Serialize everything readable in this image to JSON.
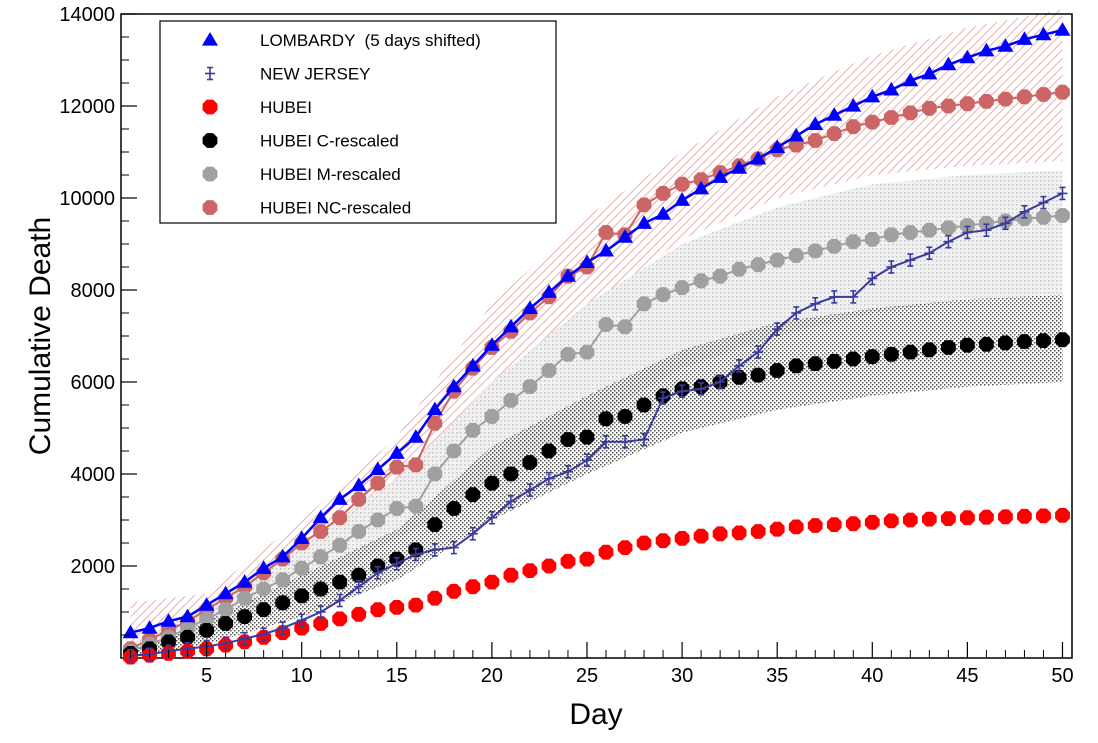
{
  "chart_data": {
    "type": "line",
    "title": "",
    "xlabel": "Day",
    "ylabel": "Cumulative Death",
    "xlim": [
      0.5,
      50.5
    ],
    "ylim": [
      0,
      14000
    ],
    "x_ticks": [
      5,
      10,
      15,
      20,
      25,
      30,
      35,
      40,
      45,
      50
    ],
    "y_ticks": [
      2000,
      4000,
      6000,
      8000,
      10000,
      12000,
      14000
    ],
    "legend": "top-left",
    "series": [
      {
        "name": "LOMBARDY  (5 days shifted)",
        "marker": "triangle",
        "color": "#0000ff",
        "line": true,
        "x": [
          1,
          2,
          3,
          4,
          5,
          6,
          7,
          8,
          9,
          10,
          11,
          12,
          13,
          14,
          15,
          16,
          17,
          18,
          19,
          20,
          21,
          22,
          23,
          24,
          25,
          26,
          27,
          28,
          29,
          30,
          31,
          32,
          33,
          34,
          35,
          36,
          37,
          38,
          39,
          40,
          41,
          42,
          43,
          44,
          45,
          46,
          47,
          48,
          49,
          50
        ],
        "y": [
          550,
          650,
          800,
          900,
          1150,
          1400,
          1650,
          1950,
          2200,
          2600,
          3050,
          3450,
          3750,
          4100,
          4450,
          4800,
          5400,
          5900,
          6350,
          6800,
          7200,
          7600,
          7950,
          8300,
          8600,
          8850,
          9150,
          9450,
          9650,
          9950,
          10200,
          10450,
          10650,
          10850,
          11100,
          11350,
          11600,
          11800,
          12000,
          12200,
          12350,
          12550,
          12700,
          12900,
          13050,
          13200,
          13300,
          13450,
          13550,
          13650
        ]
      },
      {
        "name": "NEW JERSEY",
        "marker": "cross",
        "color": "#3a3aa0",
        "line": true,
        "x": [
          1,
          2,
          3,
          4,
          5,
          6,
          7,
          8,
          9,
          10,
          11,
          12,
          13,
          14,
          15,
          16,
          17,
          18,
          19,
          20,
          21,
          22,
          23,
          24,
          25,
          26,
          27,
          28,
          29,
          30,
          31,
          32,
          33,
          34,
          35,
          36,
          37,
          38,
          39,
          40,
          41,
          42,
          43,
          44,
          45,
          46,
          47,
          48,
          49,
          50
        ],
        "y": [
          50,
          80,
          150,
          200,
          250,
          320,
          420,
          520,
          650,
          820,
          1000,
          1250,
          1550,
          1850,
          2050,
          2250,
          2350,
          2400,
          2700,
          3050,
          3400,
          3650,
          3900,
          4050,
          4300,
          4700,
          4700,
          4750,
          5650,
          5800,
          5850,
          6000,
          6350,
          6650,
          7150,
          7500,
          7700,
          7850,
          7850,
          8250,
          8500,
          8650,
          8800,
          9050,
          9250,
          9300,
          9450,
          9700,
          9900,
          10100
        ]
      },
      {
        "name": "HUBEI",
        "marker": "circle",
        "color": "#ff0000",
        "line": false,
        "x": [
          1,
          2,
          3,
          4,
          5,
          6,
          7,
          8,
          9,
          10,
          11,
          12,
          13,
          14,
          15,
          16,
          17,
          18,
          19,
          20,
          21,
          22,
          23,
          24,
          25,
          26,
          27,
          28,
          29,
          30,
          31,
          32,
          33,
          34,
          35,
          36,
          37,
          38,
          39,
          40,
          41,
          42,
          43,
          44,
          45,
          46,
          47,
          48,
          49,
          50
        ],
        "y": [
          20,
          60,
          100,
          150,
          200,
          280,
          350,
          450,
          550,
          650,
          750,
          850,
          950,
          1050,
          1100,
          1150,
          1300,
          1450,
          1550,
          1650,
          1800,
          1900,
          2000,
          2100,
          2150,
          2300,
          2400,
          2500,
          2550,
          2600,
          2650,
          2700,
          2720,
          2750,
          2800,
          2850,
          2880,
          2900,
          2920,
          2950,
          2980,
          3000,
          3020,
          3030,
          3050,
          3060,
          3070,
          3080,
          3090,
          3100
        ]
      },
      {
        "name": "HUBEI C-rescaled",
        "marker": "circle",
        "color": "#000000",
        "line": false,
        "x": [
          1,
          2,
          3,
          4,
          5,
          6,
          7,
          8,
          9,
          10,
          11,
          12,
          13,
          14,
          15,
          16,
          17,
          18,
          19,
          20,
          21,
          22,
          23,
          24,
          25,
          26,
          27,
          28,
          29,
          30,
          31,
          32,
          33,
          34,
          35,
          36,
          37,
          38,
          39,
          40,
          41,
          42,
          43,
          44,
          45,
          46,
          47,
          48,
          49,
          50
        ],
        "y": [
          100,
          200,
          350,
          450,
          600,
          750,
          900,
          1050,
          1200,
          1350,
          1500,
          1650,
          1800,
          2000,
          2150,
          2350,
          2900,
          3250,
          3550,
          3800,
          4000,
          4250,
          4500,
          4750,
          4800,
          5200,
          5250,
          5500,
          5700,
          5850,
          5900,
          6000,
          6100,
          6150,
          6250,
          6350,
          6400,
          6450,
          6500,
          6550,
          6600,
          6650,
          6700,
          6750,
          6800,
          6820,
          6850,
          6880,
          6900,
          6920
        ]
      },
      {
        "name": "HUBEI M-rescaled",
        "marker": "circle",
        "color": "#a0a0a0",
        "line": true,
        "x": [
          1,
          2,
          3,
          4,
          5,
          6,
          7,
          8,
          9,
          10,
          11,
          12,
          13,
          14,
          15,
          16,
          17,
          18,
          19,
          20,
          21,
          22,
          23,
          24,
          25,
          26,
          27,
          28,
          29,
          30,
          31,
          32,
          33,
          34,
          35,
          36,
          37,
          38,
          39,
          40,
          41,
          42,
          43,
          44,
          45,
          46,
          47,
          48,
          49,
          50
        ],
        "y": [
          150,
          300,
          450,
          650,
          850,
          1050,
          1300,
          1500,
          1700,
          1950,
          2200,
          2450,
          2750,
          3000,
          3250,
          3300,
          4000,
          4500,
          4950,
          5250,
          5600,
          5900,
          6250,
          6600,
          6650,
          7250,
          7200,
          7700,
          7900,
          8050,
          8200,
          8300,
          8450,
          8550,
          8650,
          8750,
          8850,
          8950,
          9050,
          9100,
          9200,
          9250,
          9300,
          9350,
          9400,
          9450,
          9500,
          9550,
          9580,
          9620
        ]
      },
      {
        "name": "HUBEI NC-rescaled",
        "marker": "circle",
        "color": "#cc6666",
        "line": true,
        "x": [
          1,
          2,
          3,
          4,
          5,
          6,
          7,
          8,
          9,
          10,
          11,
          12,
          13,
          14,
          15,
          16,
          17,
          18,
          19,
          20,
          21,
          22,
          23,
          24,
          25,
          26,
          27,
          28,
          29,
          30,
          31,
          32,
          33,
          34,
          35,
          36,
          37,
          38,
          39,
          40,
          41,
          42,
          43,
          44,
          45,
          46,
          47,
          48,
          49,
          50
        ],
        "y": [
          200,
          400,
          600,
          800,
          1050,
          1300,
          1550,
          1850,
          2150,
          2500,
          2750,
          3050,
          3450,
          3800,
          4150,
          4200,
          5100,
          5800,
          6300,
          6750,
          7100,
          7500,
          7850,
          8300,
          8500,
          9250,
          9200,
          9850,
          10100,
          10300,
          10400,
          10550,
          10700,
          10850,
          11050,
          11150,
          11250,
          11400,
          11550,
          11650,
          11750,
          11850,
          11950,
          12000,
          12050,
          12100,
          12150,
          12200,
          12250,
          12300
        ]
      }
    ],
    "bands": [
      {
        "name": "HUBEI NC-rescaled band",
        "color": "#e3a6a6",
        "x": [
          1,
          5,
          10,
          15,
          17,
          20,
          25,
          30,
          35,
          40,
          45,
          50
        ],
        "lower": [
          0,
          700,
          2000,
          3400,
          4000,
          5800,
          7600,
          9100,
          10000,
          10500,
          10700,
          10800
        ],
        "upper": [
          1200,
          1400,
          3000,
          4800,
          6000,
          7700,
          9600,
          11000,
          12200,
          13100,
          13700,
          14100
        ]
      },
      {
        "name": "HUBEI M-rescaled band",
        "color": "#c8c8c8",
        "x": [
          1,
          5,
          10,
          15,
          17,
          20,
          25,
          30,
          35,
          40,
          45,
          50
        ],
        "lower": [
          0,
          500,
          1400,
          2600,
          3000,
          3900,
          5100,
          6300,
          7000,
          7500,
          7800,
          7900
        ],
        "upper": [
          300,
          1100,
          2500,
          3900,
          4700,
          6000,
          7700,
          9000,
          9800,
          10300,
          10500,
          10600
        ]
      },
      {
        "name": "HUBEI C-rescaled band",
        "color": "#555555",
        "x": [
          1,
          5,
          10,
          15,
          17,
          20,
          25,
          30,
          35,
          40,
          45,
          50
        ],
        "lower": [
          0,
          300,
          900,
          1700,
          2200,
          3000,
          4000,
          4900,
          5400,
          5700,
          5900,
          6000
        ],
        "upper": [
          150,
          800,
          1800,
          2800,
          3500,
          4600,
          5700,
          6700,
          7300,
          7600,
          7800,
          7900
        ]
      }
    ]
  }
}
